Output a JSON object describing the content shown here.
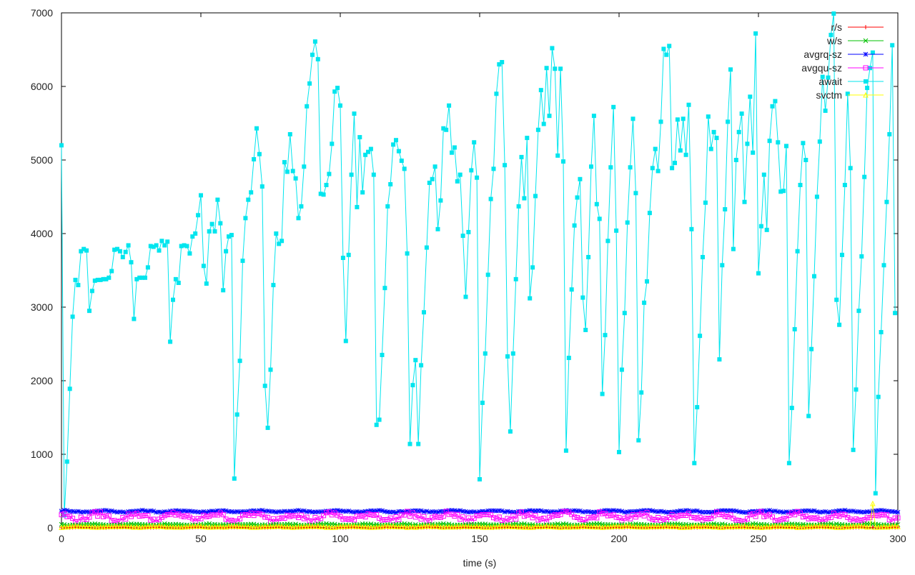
{
  "chart_data": {
    "type": "line",
    "xlabel": "time (s)",
    "xlim": [
      0,
      300
    ],
    "ylim": [
      0,
      7000
    ],
    "x_ticks": [
      0,
      50,
      100,
      150,
      200,
      250,
      300
    ],
    "y_ticks": [
      0,
      1000,
      2000,
      3000,
      4000,
      5000,
      6000,
      7000
    ],
    "grid": false,
    "legend_position": "top-right",
    "legend": [
      {
        "name": "r/s",
        "color": "#ff0000",
        "marker": "plus"
      },
      {
        "name": "w/s",
        "color": "#00c000",
        "marker": "cross"
      },
      {
        "name": "avgrq-sz",
        "color": "#0000ff",
        "marker": "star"
      },
      {
        "name": "avgqu-sz",
        "color": "#ff00ff",
        "marker": "square-open"
      },
      {
        "name": "await",
        "color": "#00e5ee",
        "marker": "square-filled"
      },
      {
        "name": "svctm",
        "color": "#ffff00",
        "marker": "triangle"
      }
    ],
    "series": [
      {
        "name": "await",
        "color": "#00e5ee",
        "x_start": 0,
        "x_step": 1,
        "values": [
          5200,
          170,
          900,
          1890,
          2870,
          3370,
          3300,
          3760,
          3790,
          3770,
          2950,
          3220,
          3360,
          3370,
          3370,
          3380,
          3380,
          3400,
          3490,
          3780,
          3790,
          3760,
          3680,
          3750,
          3840,
          3610,
          2840,
          3380,
          3400,
          3400,
          3400,
          3540,
          3830,
          3820,
          3840,
          3770,
          3900,
          3840,
          3890,
          2530,
          3100,
          3380,
          3330,
          3830,
          3840,
          3830,
          3730,
          3960,
          4000,
          4250,
          4520,
          3560,
          3320,
          4030,
          4130,
          4030,
          4460,
          4140,
          3230,
          3760,
          3960,
          3980,
          670,
          1540,
          2270,
          3630,
          4210,
          4460,
          4560,
          5010,
          5430,
          5080,
          4640,
          1930,
          1360,
          2150,
          3300,
          4000,
          3860,
          3900,
          4970,
          4840,
          5350,
          4850,
          4750,
          4210,
          4370,
          4910,
          5730,
          6040,
          6430,
          6610,
          6370,
          4540,
          4530,
          4660,
          4810,
          5220,
          5930,
          5980,
          5740,
          3670,
          2540,
          3710,
          4800,
          5630,
          4360,
          5310,
          4560,
          5070,
          5110,
          5150,
          4800,
          1400,
          1470,
          2350,
          3260,
          4370,
          4670,
          5210,
          5270,
          5120,
          4990,
          4880,
          3730,
          1140,
          1940,
          2280,
          1140,
          2210,
          2930,
          3810,
          4690,
          4740,
          4910,
          4060,
          4450,
          5430,
          5410,
          5740,
          5100,
          5170,
          4710,
          4800,
          3970,
          3140,
          4020,
          4860,
          5240,
          4760,
          660,
          1700,
          2370,
          3440,
          4470,
          4880,
          5900,
          6300,
          6330,
          4930,
          2330,
          1310,
          2370,
          3380,
          4370,
          5040,
          4480,
          5300,
          3120,
          3540,
          4510,
          5410,
          5950,
          5490,
          6250,
          5600,
          6520,
          6240,
          5060,
          6240,
          4980,
          1050,
          2310,
          3240,
          4110,
          4490,
          4740,
          3130,
          2690,
          3680,
          4910,
          5600,
          4400,
          4200,
          1820,
          2620,
          3900,
          4900,
          5720,
          4040,
          1030,
          2150,
          2920,
          4150,
          4900,
          5560,
          4550,
          1190,
          1840,
          3060,
          3350,
          4280,
          4890,
          5150,
          4850,
          5520,
          6510,
          6430,
          6550,
          4890,
          4960,
          5550,
          5130,
          5560,
          5070,
          5750,
          4060,
          880,
          1640,
          2610,
          3680,
          4420,
          5590,
          5150,
          5380,
          5300,
          2290,
          3570,
          4330,
          5520,
          6230,
          3790,
          5000,
          5380,
          5630,
          4430,
          5220,
          5860,
          5100,
          6720,
          3460,
          4100,
          4800,
          4050,
          5260,
          5730,
          5800,
          5240,
          4570,
          4580,
          5190,
          880,
          1630,
          2700,
          3760,
          4660,
          5230,
          5000,
          1520,
          2430,
          3420,
          4500,
          5250,
          6130,
          5670,
          6120,
          6700,
          6990,
          3100,
          2760,
          3710,
          4660,
          5900,
          4890,
          1060,
          1880,
          2950,
          3690,
          4770,
          5980,
          6250,
          6460,
          470,
          1780,
          2660,
          3570,
          4430,
          5350,
          6560,
          2920
        ]
      },
      {
        "name": "avgrq-sz",
        "color": "#0000ff",
        "x_start": 0,
        "x_step": 1,
        "approx_level": 225,
        "approx_amplitude": 15
      },
      {
        "name": "avgqu-sz",
        "color": "#ff00ff",
        "x_start": 0,
        "x_step": 1,
        "approx_level": 150,
        "approx_amplitude": 70
      },
      {
        "name": "w/s",
        "color": "#00c000",
        "x_start": 0,
        "x_step": 1,
        "approx_level": 45,
        "approx_amplitude": 12
      },
      {
        "name": "r/s",
        "color": "#ff0000",
        "x_start": 0,
        "x_step": 1,
        "approx_level": 8,
        "approx_amplitude": 4
      },
      {
        "name": "svctm",
        "color": "#ffff00",
        "x_start": 0,
        "x_step": 1,
        "approx_level": 15,
        "approx_amplitude": 10,
        "spike_x": 291,
        "spike_value": 330
      }
    ]
  }
}
